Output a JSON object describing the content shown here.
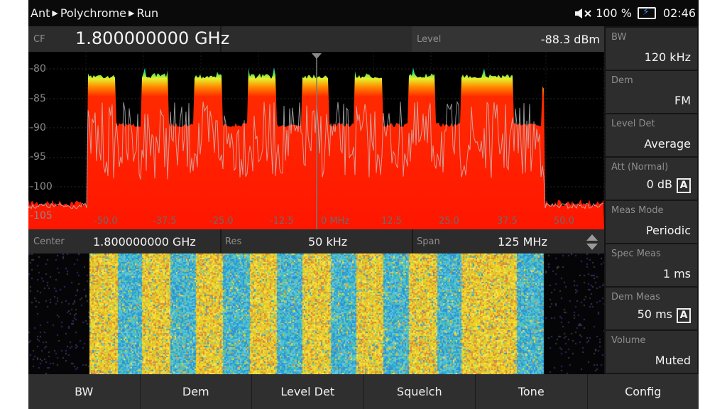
{
  "statusbar": {
    "breadcrumb": [
      "Ant",
      "Polychrome",
      "Run"
    ],
    "speaker_icon": "speaker-muted-icon",
    "battery_percent": "100 %",
    "battery_icon": "battery-charging-icon",
    "time": "02:46"
  },
  "cf_bar": {
    "label": "CF",
    "value": "1.800000000 GHz"
  },
  "level_bar": {
    "label": "Level",
    "value": "-88.3 dBm"
  },
  "spectrum": {
    "y_ticks": [
      "-80",
      "-85",
      "-90",
      "-95",
      "-100",
      "-105"
    ],
    "x_ticks": [
      "-50.0",
      "-37.5",
      "-25.0",
      "-12.5",
      "0 MHz",
      "12.5",
      "25.0",
      "37.5",
      "50.0"
    ]
  },
  "info_bar": {
    "center_label": "Center",
    "center_value": "1.800000000 GHz",
    "res_label": "Res",
    "res_value": "50 kHz",
    "span_label": "Span",
    "span_value": "125 MHz"
  },
  "right_panel": [
    {
      "label": "BW",
      "value": "120 kHz",
      "badge": ""
    },
    {
      "label": "Dem",
      "value": "FM",
      "badge": ""
    },
    {
      "label": "Level Det",
      "value": "Average",
      "badge": ""
    },
    {
      "label": "Att (Normal)",
      "value": "0 dB",
      "badge": "A"
    },
    {
      "label": "Meas Mode",
      "value": "Periodic",
      "badge": ""
    },
    {
      "label": "Spec Meas",
      "value": "1 ms",
      "badge": ""
    },
    {
      "label": "Dem Meas",
      "value": "50 ms",
      "badge": "A"
    },
    {
      "label": "Volume",
      "value": "Muted",
      "badge": ""
    }
  ],
  "softkeys": [
    "BW",
    "Dem",
    "Level Det",
    "Squelch",
    "Tone",
    "Config"
  ],
  "colors": {
    "trace_fill": "#ff1e00",
    "waterfall_yellow": "#e8d02a",
    "waterfall_cyan": "#3ab3d6",
    "battery_bolt": "#3b8fe6"
  }
}
